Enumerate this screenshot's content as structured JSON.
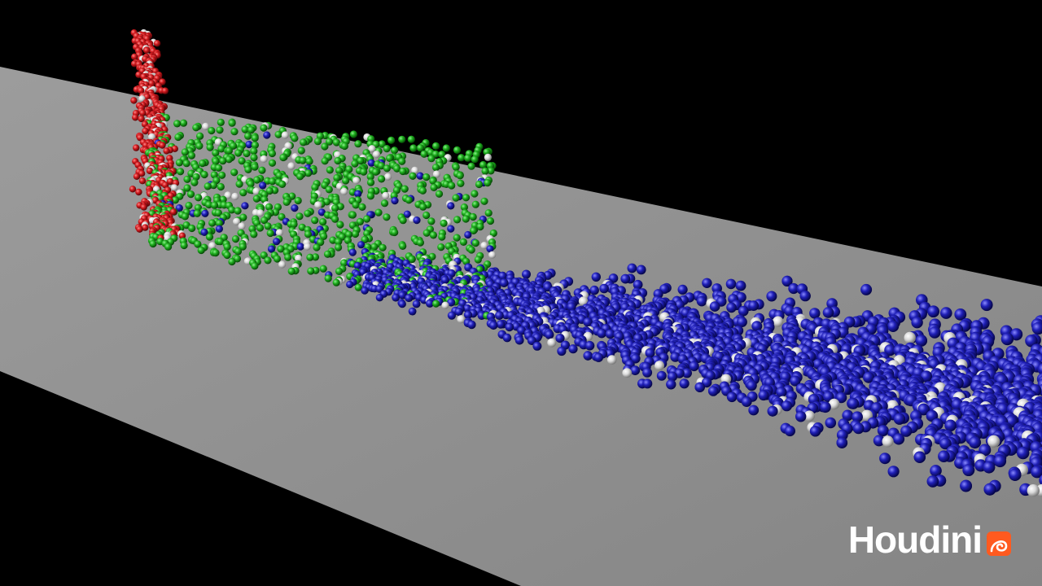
{
  "viewport": {
    "background_color": "#000000",
    "ground_plane_color": "#8f8f8f"
  },
  "particles": {
    "groups": [
      {
        "name": "red",
        "color": "#c8161a"
      },
      {
        "name": "green",
        "color": "#1aa51a"
      },
      {
        "name": "blue",
        "color": "#1c1cae"
      },
      {
        "name": "white",
        "color": "#d9d9d9"
      }
    ]
  },
  "watermark": {
    "text": "Houdini",
    "icon": "houdini-spiral-logo-icon",
    "icon_color": "#ff5a1f"
  }
}
